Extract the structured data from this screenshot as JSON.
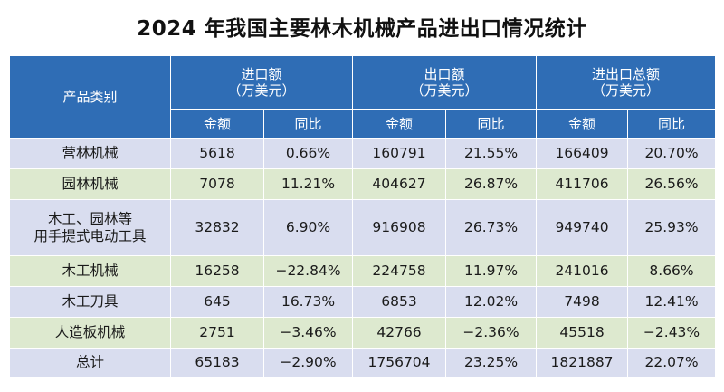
{
  "title": "2024 年我国主要林木机械产品进出口情况统计",
  "header": {
    "category": "产品类别",
    "groups": [
      {
        "line1": "进口额",
        "line2": "（万美元）"
      },
      {
        "line1": "出口额",
        "line2": "（万美元）"
      },
      {
        "line1": "进出口总额",
        "line2": "（万美元）"
      }
    ],
    "amount": "金额",
    "yoy": "同比"
  },
  "rows": [
    {
      "category": [
        "营林机械"
      ],
      "import_amount": "5618",
      "import_yoy": "0.66%",
      "export_amount": "160791",
      "export_yoy": "21.55%",
      "total_amount": "166409",
      "total_yoy": "20.70%"
    },
    {
      "category": [
        "园林机械"
      ],
      "import_amount": "7078",
      "import_yoy": "11.21%",
      "export_amount": "404627",
      "export_yoy": "26.87%",
      "total_amount": "411706",
      "total_yoy": "26.56%"
    },
    {
      "category": [
        "木工、园林等",
        "用手提式电动工具"
      ],
      "import_amount": "32832",
      "import_yoy": "6.90%",
      "export_amount": "916908",
      "export_yoy": "26.73%",
      "total_amount": "949740",
      "total_yoy": "25.93%"
    },
    {
      "category": [
        "木工机械"
      ],
      "import_amount": "16258",
      "import_yoy": "−22.84%",
      "export_amount": "224758",
      "export_yoy": "11.97%",
      "total_amount": "241016",
      "total_yoy": "8.66%"
    },
    {
      "category": [
        "木工刀具"
      ],
      "import_amount": "645",
      "import_yoy": "16.73%",
      "export_amount": "6853",
      "export_yoy": "12.02%",
      "total_amount": "7498",
      "total_yoy": "12.41%"
    },
    {
      "category": [
        "人造板机械"
      ],
      "import_amount": "2751",
      "import_yoy": "−3.46%",
      "export_amount": "42766",
      "export_yoy": "−2.36%",
      "total_amount": "45518",
      "total_yoy": "−2.43%"
    },
    {
      "category": [
        "总计"
      ],
      "import_amount": "65183",
      "import_yoy": "−2.90%",
      "export_amount": "1756704",
      "export_yoy": "23.25%",
      "total_amount": "1821887",
      "total_yoy": "22.07%"
    }
  ],
  "colors": {
    "header_bg": "#2f6db5",
    "row_odd_bg": "#d9ddef",
    "row_even_bg": "#dde9cf"
  }
}
